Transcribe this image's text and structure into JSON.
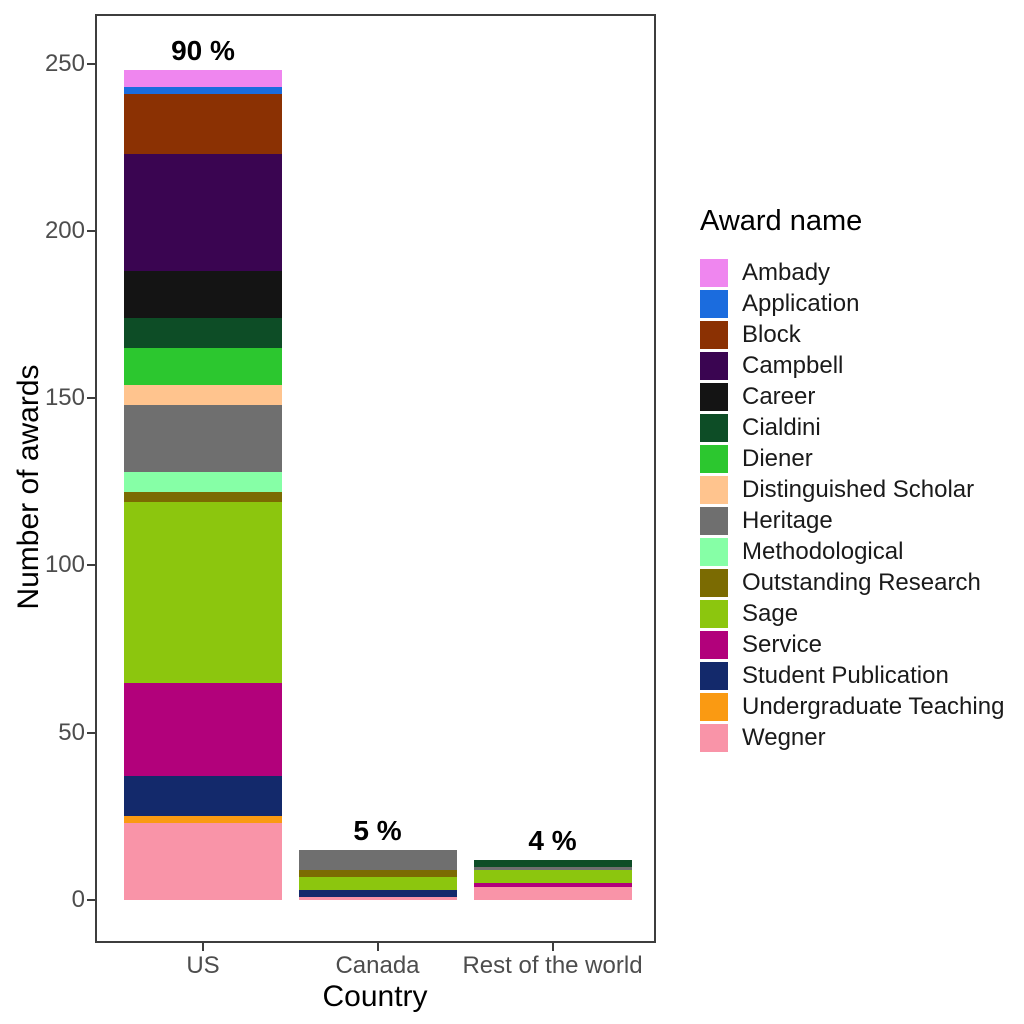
{
  "chart_data": {
    "type": "stacked_bar",
    "title": "",
    "xlabel": "Country",
    "ylabel": "Number of awards",
    "legend_title": "Award name",
    "legend_position": "right",
    "grid": false,
    "categories": [
      "US",
      "Canada",
      "Rest of the world"
    ],
    "y_ticks": [
      0,
      50,
      100,
      150,
      200,
      250
    ],
    "ylim": [
      0,
      262
    ],
    "bar_percent_labels": [
      "90 %",
      "5 %",
      "4 %"
    ],
    "bar_totals": [
      248,
      15,
      12
    ],
    "series": [
      {
        "name": "Ambady",
        "color": "#EF86EF",
        "values": [
          5,
          0,
          0
        ]
      },
      {
        "name": "Application",
        "color": "#1B6CDE",
        "values": [
          2,
          0,
          0
        ]
      },
      {
        "name": "Block",
        "color": "#8B3103",
        "values": [
          18,
          0,
          0
        ]
      },
      {
        "name": "Campbell",
        "color": "#3A0551",
        "values": [
          35,
          0,
          0
        ]
      },
      {
        "name": "Career",
        "color": "#141414",
        "values": [
          14,
          0,
          0
        ]
      },
      {
        "name": "Cialdini",
        "color": "#0D4D26",
        "values": [
          9,
          0,
          2
        ]
      },
      {
        "name": "Diener",
        "color": "#2CC72F",
        "values": [
          11,
          0,
          0
        ]
      },
      {
        "name": "Distinguished Scholar",
        "color": "#FFC48E",
        "values": [
          6,
          0,
          0
        ]
      },
      {
        "name": "Heritage",
        "color": "#6F6F6F",
        "values": [
          20,
          6,
          1
        ]
      },
      {
        "name": "Methodological",
        "color": "#86FFA6",
        "values": [
          6,
          0,
          0
        ]
      },
      {
        "name": "Outstanding Research",
        "color": "#7B6B02",
        "values": [
          3,
          2,
          0
        ]
      },
      {
        "name": "Sage",
        "color": "#8CC60E",
        "values": [
          54,
          4,
          4
        ]
      },
      {
        "name": "Service",
        "color": "#B2017B",
        "values": [
          28,
          0,
          1
        ]
      },
      {
        "name": "Student Publication",
        "color": "#13296B",
        "values": [
          12,
          2,
          0
        ]
      },
      {
        "name": "Undergraduate Teaching",
        "color": "#FA9A12",
        "values": [
          2,
          0,
          0
        ]
      },
      {
        "name": "Wegner",
        "color": "#F994A8",
        "values": [
          23,
          1,
          4
        ]
      }
    ]
  }
}
